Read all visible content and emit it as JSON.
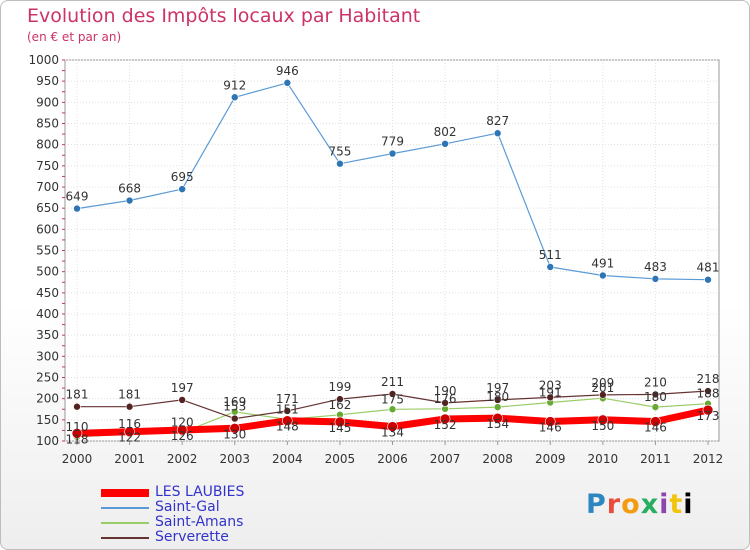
{
  "chart_data": {
    "type": "line",
    "title": "Evolution des Impôts locaux par Habitant",
    "subtitle": "(en € et par an)",
    "x": [
      "2000",
      "2001",
      "2002",
      "2003",
      "2004",
      "2005",
      "2006",
      "2007",
      "2008",
      "2009",
      "2010",
      "2011",
      "2012"
    ],
    "ylim": [
      100,
      1000
    ],
    "yticks": [
      "100",
      "150",
      "200",
      "250",
      "300",
      "350",
      "400",
      "450",
      "500",
      "550",
      "600",
      "650",
      "700",
      "750",
      "800",
      "850",
      "900",
      "950",
      "1000"
    ],
    "grid": true,
    "legend_position": "bottom-left",
    "series": [
      {
        "name": "LES LAUBIES",
        "color": "#ff0000",
        "values": [
          118,
          122,
          126,
          130,
          148,
          145,
          134,
          152,
          154,
          146,
          150,
          146,
          173
        ]
      },
      {
        "name": "Saint-Gal",
        "color": "#5b9bd5",
        "values": [
          649,
          668,
          695,
          912,
          946,
          755,
          779,
          802,
          827,
          511,
          491,
          483,
          481
        ]
      },
      {
        "name": "Saint-Amans",
        "color": "#99cc66",
        "values": [
          110,
          116,
          120,
          169,
          151,
          162,
          175,
          176,
          180,
          191,
          201,
          180,
          188
        ]
      },
      {
        "name": "Serverette",
        "color": "#663333",
        "values": [
          181,
          181,
          197,
          153,
          171,
          199,
          211,
          190,
          197,
          203,
          209,
          210,
          218
        ]
      }
    ]
  },
  "logo": {
    "letters": [
      "P",
      "r",
      "o",
      "x",
      "i",
      "t",
      "i"
    ],
    "text": "Proxiti"
  }
}
